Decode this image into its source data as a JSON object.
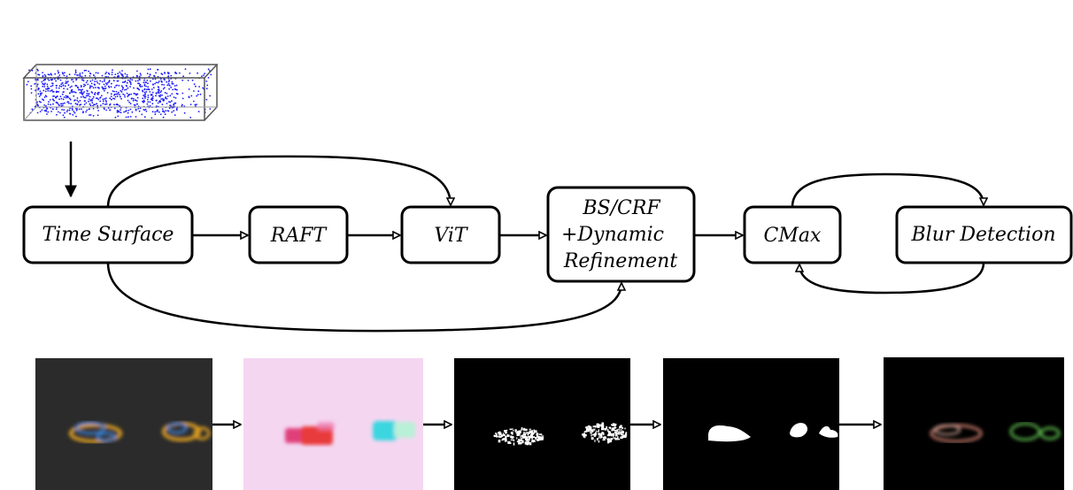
{
  "nodes": {
    "time_surface": "Time Surface",
    "raft": "RAFT",
    "vit": "ViT",
    "refine_line1": "BS/CRF",
    "refine_line2": "+Dynamic",
    "refine_line3": "Refinement",
    "cmax": "CMax",
    "blur": "Blur Detection"
  },
  "colors": {
    "event_points": "#1a1aff",
    "panel_dark": "#2b2b2b",
    "flow_background": "#f4d6f1",
    "mask_background": "#000000"
  }
}
